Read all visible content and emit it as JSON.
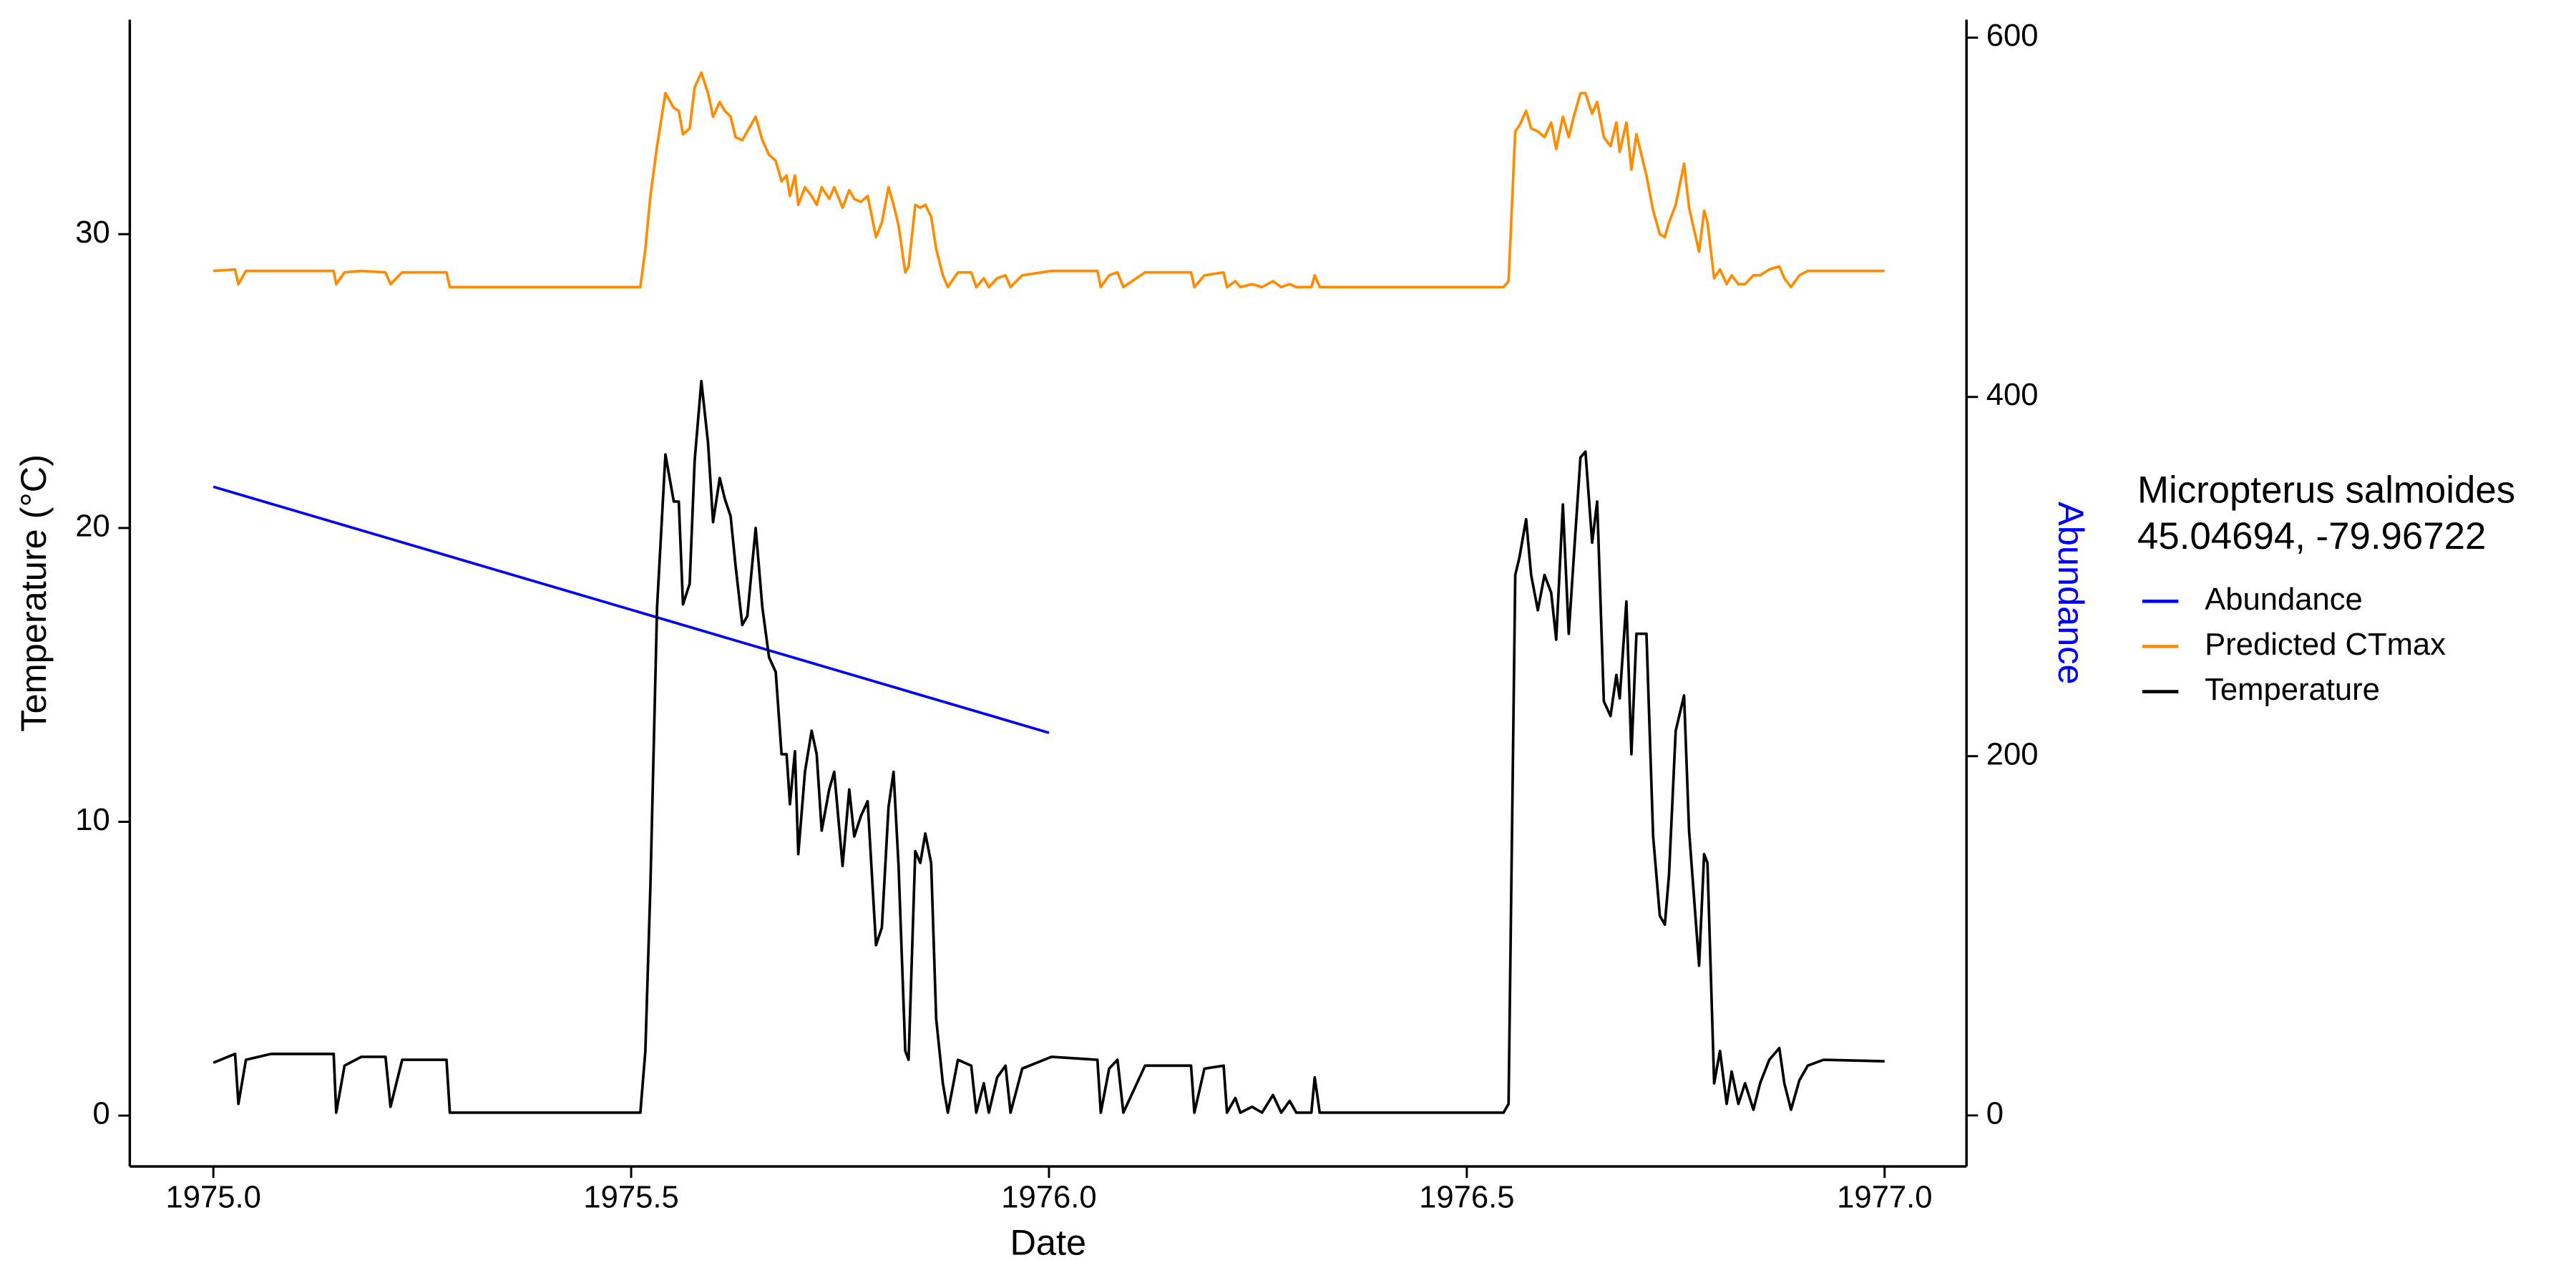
{
  "chart_data": {
    "type": "line",
    "x_label": "Date",
    "y_label": "Temperature (°C)",
    "y2_label": "Abundance",
    "y2_label_color": "#0000ff",
    "legend_title": [
      "Micropterus salmoides",
      "45.04694, -79.96722"
    ],
    "legend_position": "right",
    "grid": false,
    "xlim": [
      1974.9,
      1977.098
    ],
    "ylim": [
      -1.73,
      37.3
    ],
    "y2lim": [
      -28.4,
      610
    ],
    "xticks": [
      {
        "value": 1975,
        "label": "1975.0"
      },
      1975.5,
      {
        "value": 1976,
        "label": "1976.0"
      },
      1976.5,
      {
        "value": 1977,
        "label": "1977.0"
      }
    ],
    "yticks": [
      0,
      10,
      20,
      30
    ],
    "y2ticks": [
      0,
      200,
      400,
      600
    ],
    "x": [
      1975.0,
      1975.026,
      1975.03,
      1975.039,
      1975.069,
      1975.144,
      1975.147,
      1975.157,
      1975.177,
      1975.206,
      1975.212,
      1975.226,
      1975.279,
      1975.283,
      1975.511,
      1975.517,
      1975.523,
      1975.531,
      1975.541,
      1975.551,
      1975.557,
      1975.562,
      1975.57,
      1975.576,
      1975.584,
      1975.592,
      1975.598,
      1975.606,
      1975.612,
      1975.619,
      1975.625,
      1975.633,
      1975.639,
      1975.649,
      1975.657,
      1975.665,
      1975.673,
      1975.68,
      1975.686,
      1975.69,
      1975.696,
      1975.7,
      1975.708,
      1975.716,
      1975.722,
      1975.728,
      1975.737,
      1975.743,
      1975.753,
      1975.761,
      1975.767,
      1975.775,
      1975.783,
      1975.793,
      1975.8,
      1975.808,
      1975.814,
      1975.82,
      1975.828,
      1975.832,
      1975.84,
      1975.846,
      1975.852,
      1975.859,
      1975.865,
      1975.873,
      1975.879,
      1975.891,
      1975.907,
      1975.913,
      1975.922,
      1975.928,
      1975.938,
      1975.948,
      1975.954,
      1975.968,
      1976.003,
      1976.058,
      1976.062,
      1976.072,
      1976.082,
      1976.089,
      1976.115,
      1976.17,
      1976.174,
      1976.186,
      1976.209,
      1976.213,
      1976.223,
      1976.229,
      1976.243,
      1976.255,
      1976.268,
      1976.278,
      1976.288,
      1976.296,
      1976.314,
      1976.318,
      1976.324,
      1976.544,
      1976.55,
      1976.558,
      1976.563,
      1976.571,
      1976.577,
      1976.585,
      1976.593,
      1976.601,
      1976.607,
      1976.615,
      1976.622,
      1976.628,
      1976.636,
      1976.642,
      1976.65,
      1976.656,
      1976.664,
      1976.672,
      1976.679,
      1976.683,
      1976.691,
      1976.697,
      1976.703,
      1976.715,
      1976.723,
      1976.731,
      1976.737,
      1976.742,
      1976.75,
      1976.76,
      1976.766,
      1976.778,
      1976.784,
      1976.788,
      1976.796,
      1976.803,
      1976.811,
      1976.817,
      1976.825,
      1976.833,
      1976.843,
      1976.851,
      1976.862,
      1976.874,
      1976.88,
      1976.888,
      1976.898,
      1976.908,
      1976.927,
      1977.0
    ],
    "series": [
      {
        "name": "Abundance",
        "color": "#0000ff",
        "axis": "y2",
        "x": [
          1975,
          1976
        ],
        "values": [
          350,
          213
        ]
      },
      {
        "name": "Predicted CTmax",
        "color": "#ff8c00",
        "values": [
          28.75,
          28.8,
          28.3,
          28.75,
          28.75,
          28.75,
          28.3,
          28.7,
          28.75,
          28.7,
          28.3,
          28.7,
          28.7,
          28.2,
          28.2,
          29.5,
          31.3,
          33.0,
          34.8,
          34.3,
          34.2,
          33.4,
          33.6,
          35.0,
          35.5,
          34.8,
          34.0,
          34.5,
          34.2,
          34.0,
          33.3,
          33.2,
          33.5,
          34.0,
          33.2,
          32.7,
          32.5,
          31.8,
          32.0,
          31.3,
          32.0,
          31.0,
          31.6,
          31.3,
          31.0,
          31.6,
          31.2,
          31.6,
          30.9,
          31.5,
          31.2,
          31.1,
          31.3,
          29.9,
          30.4,
          31.6,
          31.0,
          30.3,
          28.7,
          28.9,
          31.0,
          30.9,
          31.0,
          30.6,
          29.5,
          28.6,
          28.2,
          28.7,
          28.7,
          28.2,
          28.5,
          28.2,
          28.5,
          28.6,
          28.2,
          28.6,
          28.75,
          28.75,
          28.2,
          28.6,
          28.7,
          28.2,
          28.7,
          28.7,
          28.2,
          28.6,
          28.7,
          28.2,
          28.4,
          28.2,
          28.3,
          28.2,
          28.4,
          28.2,
          28.3,
          28.2,
          28.2,
          28.6,
          28.2,
          28.2,
          28.4,
          33.5,
          33.7,
          34.2,
          33.6,
          33.5,
          33.3,
          33.8,
          32.9,
          34.0,
          33.3,
          34.0,
          34.8,
          34.8,
          34.1,
          34.5,
          33.3,
          33.0,
          33.8,
          32.8,
          33.8,
          32.2,
          33.4,
          32.0,
          30.8,
          30.0,
          29.9,
          30.4,
          31.0,
          32.4,
          30.9,
          29.4,
          30.8,
          30.4,
          28.5,
          28.8,
          28.3,
          28.6,
          28.3,
          28.3,
          28.6,
          28.6,
          28.8,
          28.9,
          28.5,
          28.2,
          28.6,
          28.75,
          28.75,
          28.75
        ]
      },
      {
        "name": "Temperature",
        "color": "#000000",
        "values": [
          1.8,
          2.1,
          0.4,
          1.9,
          2.1,
          2.1,
          0.1,
          1.7,
          2.0,
          2.0,
          0.3,
          1.9,
          1.9,
          0.1,
          0.1,
          2.2,
          7.8,
          17.3,
          22.5,
          20.9,
          20.9,
          17.4,
          18.1,
          22.3,
          25.0,
          22.9,
          20.2,
          21.7,
          21.0,
          20.4,
          18.7,
          16.7,
          17.0,
          20.0,
          17.3,
          15.6,
          15.1,
          12.3,
          12.3,
          10.6,
          12.4,
          8.9,
          11.7,
          13.1,
          12.3,
          9.7,
          11.1,
          11.7,
          8.5,
          11.1,
          9.5,
          10.2,
          10.7,
          5.8,
          6.4,
          10.5,
          11.7,
          8.5,
          2.2,
          1.9,
          9.0,
          8.6,
          9.6,
          8.6,
          3.3,
          1.1,
          0.1,
          1.9,
          1.7,
          0.1,
          1.1,
          0.1,
          1.3,
          1.7,
          0.1,
          1.6,
          2.0,
          1.9,
          0.1,
          1.6,
          1.9,
          0.1,
          1.7,
          1.7,
          0.1,
          1.6,
          1.7,
          0.1,
          0.6,
          0.1,
          0.3,
          0.1,
          0.7,
          0.1,
          0.5,
          0.1,
          0.1,
          1.3,
          0.1,
          0.1,
          0.4,
          18.4,
          19.0,
          20.3,
          18.4,
          17.2,
          18.4,
          17.8,
          16.2,
          20.8,
          16.4,
          19.0,
          22.4,
          22.6,
          19.5,
          20.9,
          14.1,
          13.6,
          15.0,
          14.2,
          17.5,
          12.3,
          16.4,
          16.4,
          9.5,
          6.8,
          6.5,
          8.2,
          13.1,
          14.3,
          9.7,
          5.1,
          8.9,
          8.6,
          1.1,
          2.2,
          0.4,
          1.5,
          0.4,
          1.1,
          0.2,
          1.1,
          1.9,
          2.3,
          1.1,
          0.2,
          1.2,
          1.7,
          1.9,
          1.85
        ]
      }
    ]
  }
}
